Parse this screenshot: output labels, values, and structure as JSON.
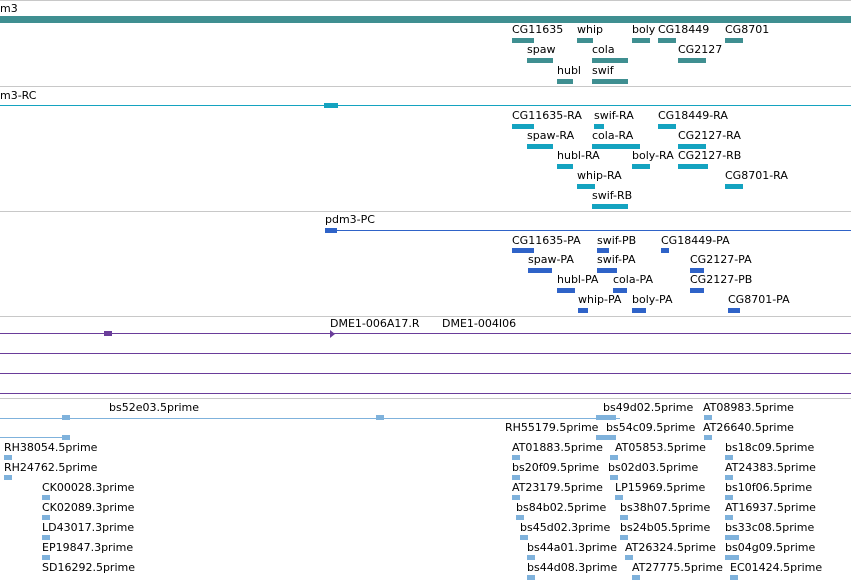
{
  "colors": {
    "gene": "#3f8f91",
    "transcript_ra": "#14a3c0",
    "transcript_pa": "#2f63c8",
    "protein": "#6a3d9a",
    "est": "#7fb2dc"
  },
  "tracks": {
    "gene": {
      "label": "m3",
      "features": [
        "CG11635",
        "whip",
        "boly",
        "CG18449",
        "CG8701",
        "spaw",
        "cola",
        "CG2127",
        "hubl",
        "swif"
      ]
    },
    "rna": {
      "label": "m3-RC",
      "features": [
        "CG11635-RA",
        "swif-RA",
        "CG18449-RA",
        "spaw-RA",
        "cola-RA",
        "CG2127-RA",
        "hubl-RA",
        "boly-RA",
        "CG2127-RB",
        "whip-RA",
        "CG8701-RA",
        "swif-RB"
      ]
    },
    "protein": {
      "label": "pdm3-PC",
      "features": [
        "CG11635-PA",
        "swif-PB",
        "CG18449-PA",
        "spaw-PA",
        "swif-PA",
        "CG2127-PA",
        "hubl-PA",
        "cola-PA",
        "CG2127-PB",
        "whip-PA",
        "boly-PA",
        "CG8701-PA"
      ]
    },
    "clones": {
      "features": [
        "DME1-006A17.R",
        "DME1-004I06"
      ]
    },
    "ests": {
      "features": [
        "bs52e03.5prime",
        "bs49d02.5prime",
        "AT08983.5prime",
        "RH55179.5prime",
        "bs54c09.5prime",
        "AT26640.5prime",
        "RH38054.5prime",
        "AT01883.5prime",
        "AT05853.5prime",
        "bs18c09.5prime",
        "RH24762.5prime",
        "bs20f09.5prime",
        "bs02d03.5prime",
        "AT24383.5prime",
        "CK00028.3prime",
        "AT23179.5prime",
        "LP15969.5prime",
        "bs10f06.5prime",
        "CK02089.3prime",
        "bs84b02.5prime",
        "bs38h07.5prime",
        "AT16937.5prime",
        "LD43017.3prime",
        "bs45d02.3prime",
        "bs24b05.5prime",
        "bs33c08.5prime",
        "EP19847.3prime",
        "bs44a01.3prime",
        "AT26324.5prime",
        "bs04g09.5prime",
        "SD16292.5prime",
        "bs44d08.3prime",
        "AT27775.5prime",
        "EC01424.5prime"
      ]
    }
  }
}
